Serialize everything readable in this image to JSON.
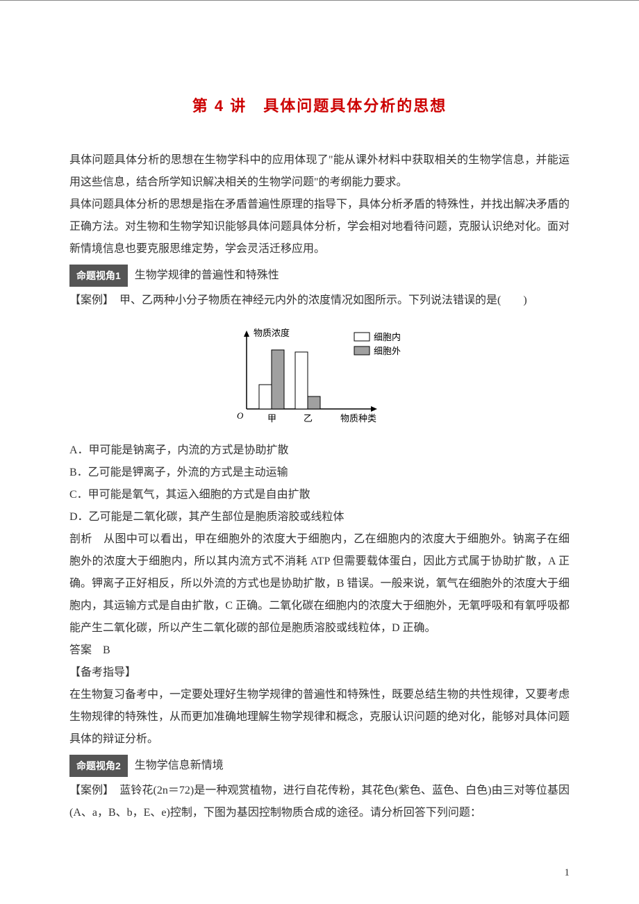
{
  "title": "第 4 讲　具体问题具体分析的思想",
  "intro1": "具体问题具体分析的思想在生物学科中的应用体现了\"能从课外材料中获取相关的生物学信息，并能运用这些信息，结合所学知识解决相关的生物学问题\"的考纲能力要求。",
  "intro2": "具体问题具体分析的思想是指在矛盾普遍性原理的指导下，具体分析矛盾的特殊性，并找出解决矛盾的正确方法。对生物和生物学知识能够具体问题具体分析，学会相对地看待问题，克服认识绝对化。面对新情境信息也要克服思维定势，学会灵活迁移应用。",
  "section1": {
    "tag": "命题视角1",
    "title": "生物学规律的普遍性和特殊性",
    "case_label": "【案例】",
    "case_text": "　甲、乙两种小分子物质在神经元内外的浓度情况如图所示。下列说法错误的是(　　)",
    "options": {
      "A": "A．甲可能是钠离子，内流的方式是协助扩散",
      "B": "B．乙可能是钾离子，外流的方式是主动运输",
      "C": "C．甲可能是氧气，其运入细胞的方式是自由扩散",
      "D": "D．乙可能是二氧化碳，其产生部位是胞质溶胶或线粒体"
    },
    "analysis_label": "剖析",
    "analysis_text": "　从图中可以看出，甲在细胞外的浓度大于细胞内，乙在细胞内的浓度大于细胞外。钠离子在细胞外的浓度大于细胞内，所以其内流方式不消耗 ATP 但需要载体蛋白，因此方式属于协助扩散，A 正确。钾离子正好相反，所以外流的方式也是协助扩散，B 错误。一般来说，氧气在细胞外的浓度大于细胞内，其运输方式是自由扩散，C 正确。二氧化碳在细胞内的浓度大于细胞外，无氧呼吸和有氧呼吸都能产生二氧化碳，所以产生二氧化碳的部位是胞质溶胶或线粒体，D 正确。",
    "answer_label": "答案",
    "answer_value": "　B",
    "guide_label": "【备考指导】",
    "guide_text": "在生物复习备考中，一定要处理好生物学规律的普遍性和特殊性，既要总结生物的共性规律，又要考虑生物规律的特殊性，从而更加准确地理解生物学规律和概念，克服认识问题的绝对化，能够对具体问题具体的辩证分析。"
  },
  "section2": {
    "tag": "命题视角2",
    "title": "生物学信息新情境",
    "case_label": "【案例】",
    "case_text": "　蓝铃花(2n＝72)是一种观赏植物，进行自花传粉，其花色(紫色、蓝色、白色)由三对等位基因(A、a，B、b，E、e)控制，下图为基因控制物质合成的途径。请分析回答下列问题："
  },
  "chart": {
    "type": "bar",
    "y_axis_label": "物质浓度",
    "x_axis_label": "物质种类",
    "categories": [
      "甲",
      "乙"
    ],
    "legend": {
      "inside": {
        "label": "细胞内",
        "fill": "#ffffff",
        "stroke": "#000000"
      },
      "outside": {
        "label": "细胞外",
        "fill": "#a0a0a0",
        "stroke": "#000000"
      }
    },
    "bars": {
      "jia_in": 35,
      "jia_out": 85,
      "yi_in": 82,
      "yi_out": 18
    },
    "axis_color": "#000000",
    "bar_stroke": "#000000",
    "font_size": 13
  },
  "page_number": "1"
}
